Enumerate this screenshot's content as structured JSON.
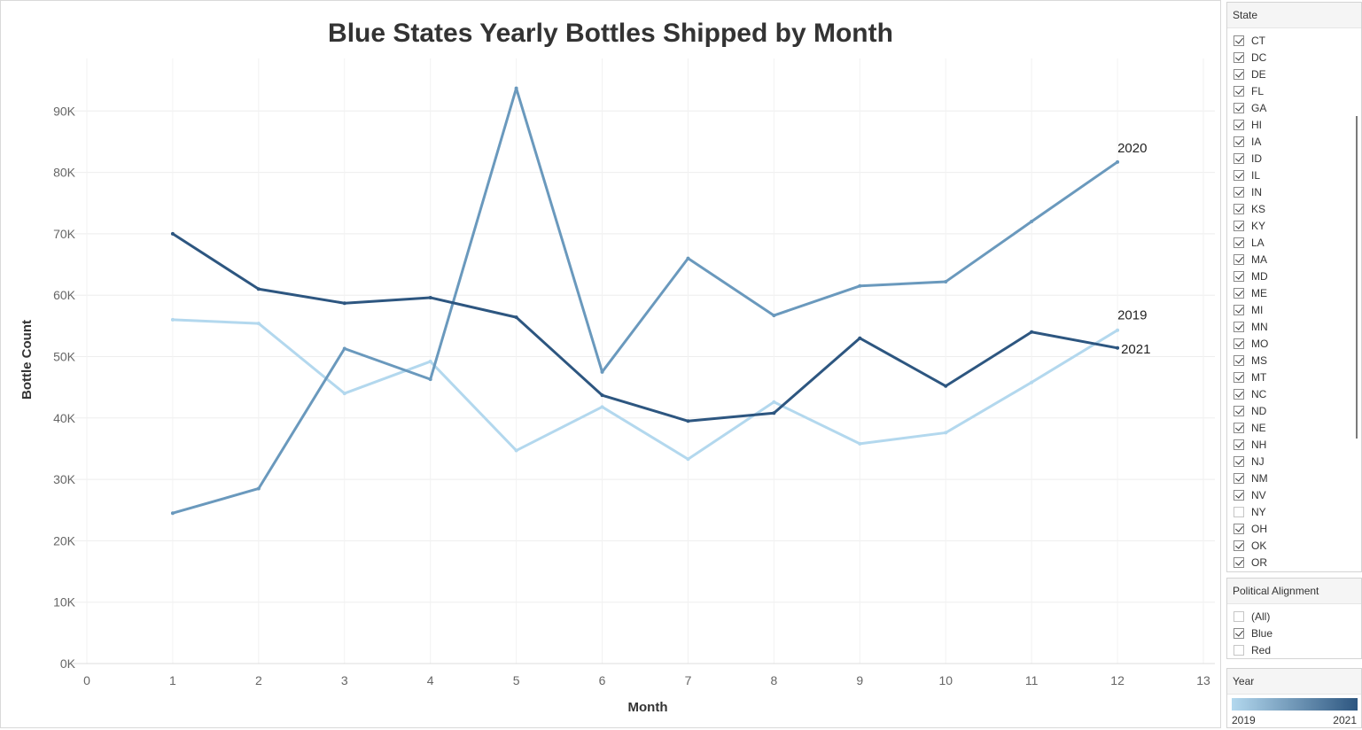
{
  "chart_data": {
    "type": "line",
    "title": "Blue States Yearly Bottles Shipped by Month",
    "xlabel": "Month",
    "ylabel": "Bottle Count",
    "xlim": [
      0,
      13
    ],
    "ylim": [
      0,
      100000
    ],
    "x_ticks": [
      "0",
      "1",
      "2",
      "3",
      "4",
      "5",
      "6",
      "7",
      "8",
      "9",
      "10",
      "11",
      "12",
      "13"
    ],
    "y_ticks": [
      {
        "value": 0,
        "label": "0K"
      },
      {
        "value": 10000,
        "label": "10K"
      },
      {
        "value": 20000,
        "label": "20K"
      },
      {
        "value": 30000,
        "label": "30K"
      },
      {
        "value": 40000,
        "label": "40K"
      },
      {
        "value": 50000,
        "label": "50K"
      },
      {
        "value": 60000,
        "label": "60K"
      },
      {
        "value": 70000,
        "label": "70K"
      },
      {
        "value": 80000,
        "label": "80K"
      },
      {
        "value": 90000,
        "label": "90K"
      }
    ],
    "grid": true,
    "x": [
      1,
      2,
      3,
      4,
      5,
      6,
      7,
      8,
      9,
      10,
      11,
      12
    ],
    "series": [
      {
        "name": "2019",
        "color": "#b3d8ee",
        "values": [
          56000,
          55400,
          44000,
          49200,
          34700,
          41800,
          33300,
          42600,
          35800,
          37600,
          45800,
          54300
        ]
      },
      {
        "name": "2020",
        "color": "#6a99bd",
        "values": [
          24500,
          28500,
          51300,
          46300,
          93700,
          47500,
          66000,
          56700,
          61500,
          62200,
          72000,
          81700
        ]
      },
      {
        "name": "2021",
        "color": "#2d5680",
        "values": [
          70000,
          61000,
          58700,
          59600,
          56400,
          43700,
          39500,
          40800,
          53000,
          45200,
          54000,
          51400
        ]
      }
    ]
  },
  "state_filter": {
    "title": "State",
    "items": [
      {
        "label": "CT",
        "checked": true
      },
      {
        "label": "DC",
        "checked": true
      },
      {
        "label": "DE",
        "checked": true
      },
      {
        "label": "FL",
        "checked": true
      },
      {
        "label": "GA",
        "checked": true
      },
      {
        "label": "HI",
        "checked": true
      },
      {
        "label": "IA",
        "checked": true
      },
      {
        "label": "ID",
        "checked": true
      },
      {
        "label": "IL",
        "checked": true
      },
      {
        "label": "IN",
        "checked": true
      },
      {
        "label": "KS",
        "checked": true
      },
      {
        "label": "KY",
        "checked": true
      },
      {
        "label": "LA",
        "checked": true
      },
      {
        "label": "MA",
        "checked": true
      },
      {
        "label": "MD",
        "checked": true
      },
      {
        "label": "ME",
        "checked": true
      },
      {
        "label": "MI",
        "checked": true
      },
      {
        "label": "MN",
        "checked": true
      },
      {
        "label": "MO",
        "checked": true
      },
      {
        "label": "MS",
        "checked": true
      },
      {
        "label": "MT",
        "checked": true
      },
      {
        "label": "NC",
        "checked": true
      },
      {
        "label": "ND",
        "checked": true
      },
      {
        "label": "NE",
        "checked": true
      },
      {
        "label": "NH",
        "checked": true
      },
      {
        "label": "NJ",
        "checked": true
      },
      {
        "label": "NM",
        "checked": true
      },
      {
        "label": "NV",
        "checked": true
      },
      {
        "label": "NY",
        "checked": false
      },
      {
        "label": "OH",
        "checked": true
      },
      {
        "label": "OK",
        "checked": true
      },
      {
        "label": "OR",
        "checked": true
      }
    ]
  },
  "alignment_filter": {
    "title": "Political Alignment",
    "items": [
      {
        "label": "(All)",
        "checked": false
      },
      {
        "label": "Blue",
        "checked": true
      },
      {
        "label": "Red",
        "checked": false
      }
    ]
  },
  "year_legend": {
    "title": "Year",
    "min_label": "2019",
    "max_label": "2021",
    "color_start": "#b3d8ee",
    "color_end": "#2d5680"
  }
}
